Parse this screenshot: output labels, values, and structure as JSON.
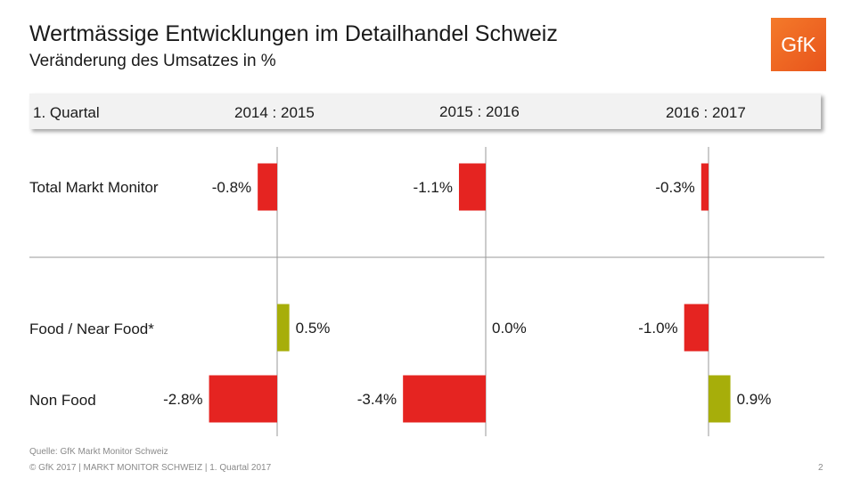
{
  "header": {
    "title": "Wertmässige Entwicklungen im Detailhandel Schweiz",
    "subtitle": "Veränderung des Umsatzes in %",
    "logo_text": "GfK"
  },
  "table_header": {
    "period_label": "1. Quartal",
    "columns": [
      "2014 : 2015",
      "2015 : 2016",
      "2016 : 2017"
    ]
  },
  "chart_data": {
    "type": "bar",
    "orientation": "horizontal",
    "groups": [
      "2014 : 2015",
      "2015 : 2016",
      "2016 : 2017"
    ],
    "categories": [
      "Total Markt Monitor",
      "Food / Near Food*",
      "Non Food"
    ],
    "values": [
      [
        -0.8,
        0.5,
        -2.8
      ],
      [
        -1.1,
        0.0,
        -3.4
      ],
      [
        -0.3,
        -1.0,
        0.9
      ]
    ],
    "value_labels": [
      [
        "-0.8%",
        "0.5%",
        "-2.8%"
      ],
      [
        "-1.1%",
        "0.0%",
        "-3.4%"
      ],
      [
        "-0.3%",
        "-1.0%",
        "0.9%"
      ]
    ],
    "colors": {
      "negative": "#e52421",
      "positive": "#a7ae0a"
    }
  },
  "footer": {
    "source": "Quelle: GfK Markt Monitor Schweiz",
    "copyright": "© GfK 2017 | MARKT MONITOR SCHWEIZ | 1. Quartal 2017",
    "page_number": "2"
  }
}
